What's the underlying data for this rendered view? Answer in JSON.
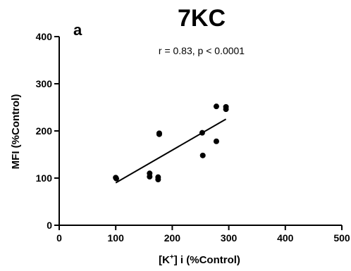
{
  "chart_data": {
    "type": "scatter",
    "title": "7KC",
    "panel_label": "a",
    "annotation": "r = 0.83, p < 0.0001",
    "xlabel_parts": {
      "pre": "[K",
      "sup": "+",
      "post": "] i (%Control)"
    },
    "ylabel": "MFI (%Control)",
    "xlim": [
      0,
      500
    ],
    "ylim": [
      0,
      400
    ],
    "x_ticks": [
      0,
      100,
      200,
      300,
      400,
      500
    ],
    "y_ticks": [
      0,
      100,
      200,
      300,
      400
    ],
    "grid": false,
    "points": [
      {
        "x": 100,
        "y": 101
      },
      {
        "x": 101,
        "y": 99
      },
      {
        "x": 160,
        "y": 110
      },
      {
        "x": 160,
        "y": 103
      },
      {
        "x": 175,
        "y": 102
      },
      {
        "x": 175,
        "y": 97
      },
      {
        "x": 177,
        "y": 195
      },
      {
        "x": 177,
        "y": 193
      },
      {
        "x": 253,
        "y": 196
      },
      {
        "x": 254,
        "y": 148
      },
      {
        "x": 278,
        "y": 252
      },
      {
        "x": 278,
        "y": 178
      },
      {
        "x": 295,
        "y": 251
      },
      {
        "x": 295,
        "y": 246
      }
    ],
    "fit_line": {
      "x": [
        100,
        295
      ],
      "y": [
        90,
        225
      ]
    }
  }
}
